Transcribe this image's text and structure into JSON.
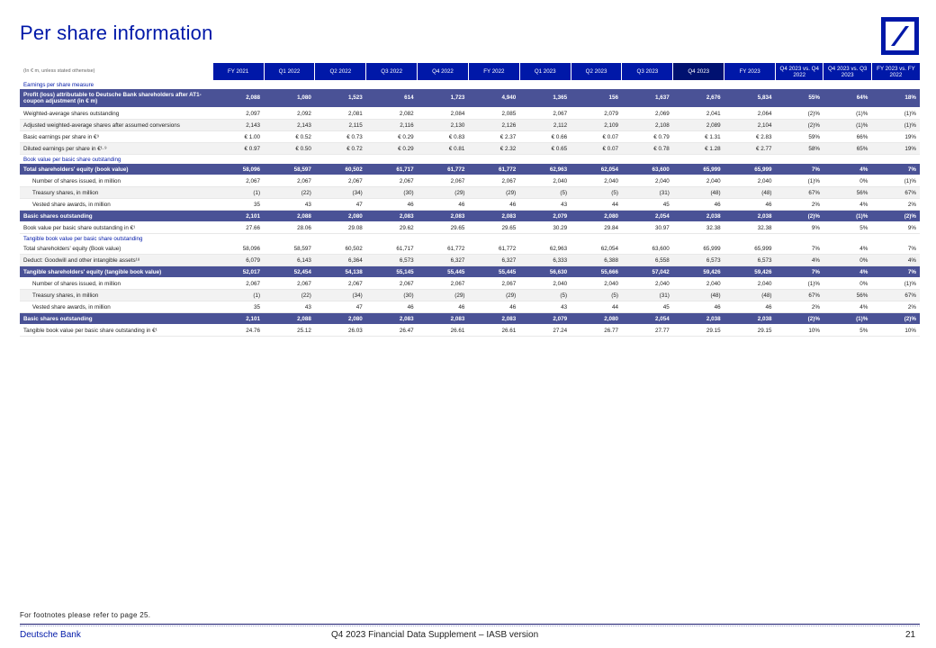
{
  "page_title": "Per share information",
  "header": {
    "label": "(In € m, unless stated otherwise)",
    "columns": [
      "FY 2021",
      "Q1 2022",
      "Q2 2022",
      "Q3 2022",
      "Q4 2022",
      "FY 2022",
      "Q1 2023",
      "Q2 2023",
      "Q3 2023",
      "Q4 2023",
      "FY 2023",
      "Q4 2023 vs. Q4 2022",
      "Q4 2023 vs. Q3 2023",
      "FY 2023 vs. FY 2022"
    ]
  },
  "rows": [
    {
      "kind": "section",
      "label": "Earnings per share measure"
    },
    {
      "kind": "total tall",
      "label": "Profit (loss) attributable to Deutsche Bank shareholders after AT1-coupon adjustment (in € m)",
      "values": [
        "2,088",
        "1,080",
        "1,523",
        "614",
        "1,723",
        "4,940",
        "1,365",
        "156",
        "1,637",
        "2,676",
        "5,834",
        "55%",
        "64%",
        "18%"
      ]
    },
    {
      "kind": "row",
      "label": "Weighted-average shares outstanding",
      "values": [
        "2,097",
        "2,092",
        "2,081",
        "2,082",
        "2,084",
        "2,085",
        "2,067",
        "2,079",
        "2,069",
        "2,041",
        "2,064",
        "(2)%",
        "(1)%",
        "(1)%"
      ]
    },
    {
      "kind": "row alt",
      "label": "Adjusted weighted-average shares after assumed conversions",
      "values": [
        "2,143",
        "2,143",
        "2,115",
        "2,116",
        "2,130",
        "2,126",
        "2,112",
        "2,109",
        "2,108",
        "2,089",
        "2,104",
        "(2)%",
        "(1)%",
        "(1)%"
      ]
    },
    {
      "kind": "row",
      "label": "Basic earnings per share in €⁹",
      "values": [
        "€ 1.00",
        "€ 0.52",
        "€ 0.73",
        "€ 0.29",
        "€ 0.83",
        "€ 2.37",
        "€ 0.66",
        "€ 0.07",
        "€ 0.79",
        "€ 1.31",
        "€ 2.83",
        "59%",
        "66%",
        "19%"
      ]
    },
    {
      "kind": "row alt",
      "label": "Diluted earnings per share in €¹·⁹",
      "values": [
        "€ 0.97",
        "€ 0.50",
        "€ 0.72",
        "€ 0.29",
        "€ 0.81",
        "€ 2.32",
        "€ 0.65",
        "€ 0.07",
        "€ 0.78",
        "€ 1.28",
        "€ 2.77",
        "58%",
        "65%",
        "19%"
      ]
    },
    {
      "kind": "section",
      "label": "Book value per basic share outstanding"
    },
    {
      "kind": "total",
      "label": "Total shareholders' equity (book value)",
      "values": [
        "58,096",
        "58,597",
        "60,502",
        "61,717",
        "61,772",
        "61,772",
        "62,963",
        "62,054",
        "63,600",
        "65,999",
        "65,999",
        "7%",
        "4%",
        "7%"
      ]
    },
    {
      "kind": "row sub",
      "label": "Number of shares issued, in million",
      "values": [
        "2,067",
        "2,067",
        "2,067",
        "2,067",
        "2,067",
        "2,067",
        "2,040",
        "2,040",
        "2,040",
        "2,040",
        "2,040",
        "(1)%",
        "0%",
        "(1)%"
      ]
    },
    {
      "kind": "row alt sub",
      "label": "Treasury shares, in million",
      "values": [
        "(1)",
        "(22)",
        "(34)",
        "(30)",
        "(29)",
        "(29)",
        "(5)",
        "(5)",
        "(31)",
        "(48)",
        "(48)",
        "67%",
        "56%",
        "67%"
      ]
    },
    {
      "kind": "row sub",
      "label": "Vested share awards, in million",
      "values": [
        "35",
        "43",
        "47",
        "46",
        "46",
        "46",
        "43",
        "44",
        "45",
        "46",
        "46",
        "2%",
        "4%",
        "2%"
      ]
    },
    {
      "kind": "total",
      "label": "Basic shares outstanding",
      "values": [
        "2,101",
        "2,088",
        "2,080",
        "2,083",
        "2,083",
        "2,083",
        "2,079",
        "2,080",
        "2,054",
        "2,038",
        "2,038",
        "(2)%",
        "(1)%",
        "(2)%"
      ]
    },
    {
      "kind": "row",
      "label": "Book value per basic share outstanding in €¹",
      "values": [
        "27.66",
        "28.06",
        "29.08",
        "29.62",
        "29.65",
        "29.65",
        "30.29",
        "29.84",
        "30.97",
        "32.38",
        "32.38",
        "9%",
        "5%",
        "9%"
      ]
    },
    {
      "kind": "section",
      "label": "Tangible book value per basic share outstanding"
    },
    {
      "kind": "row",
      "label": "Total shareholders' equity (Book value)",
      "values": [
        "58,096",
        "58,597",
        "60,502",
        "61,717",
        "61,772",
        "61,772",
        "62,963",
        "62,054",
        "63,600",
        "65,999",
        "65,999",
        "7%",
        "4%",
        "7%"
      ]
    },
    {
      "kind": "row alt",
      "label": "Deduct: Goodwill and other intangible assets¹⁸",
      "values": [
        "6,079",
        "6,143",
        "6,364",
        "6,573",
        "6,327",
        "6,327",
        "6,333",
        "6,388",
        "6,558",
        "6,573",
        "6,573",
        "4%",
        "0%",
        "4%"
      ]
    },
    {
      "kind": "total",
      "label": "Tangible shareholders' equity (tangible book value)",
      "values": [
        "52,017",
        "52,454",
        "54,138",
        "55,145",
        "55,445",
        "55,445",
        "56,630",
        "55,666",
        "57,042",
        "59,426",
        "59,426",
        "7%",
        "4%",
        "7%"
      ]
    },
    {
      "kind": "row sub",
      "label": "Number of shares issued, in million",
      "values": [
        "2,067",
        "2,067",
        "2,067",
        "2,067",
        "2,067",
        "2,067",
        "2,040",
        "2,040",
        "2,040",
        "2,040",
        "2,040",
        "(1)%",
        "0%",
        "(1)%"
      ]
    },
    {
      "kind": "row alt sub",
      "label": "Treasury shares, in million",
      "values": [
        "(1)",
        "(22)",
        "(34)",
        "(30)",
        "(29)",
        "(29)",
        "(5)",
        "(5)",
        "(31)",
        "(48)",
        "(48)",
        "67%",
        "56%",
        "67%"
      ]
    },
    {
      "kind": "row sub",
      "label": "Vested share awards, in million",
      "values": [
        "35",
        "43",
        "47",
        "46",
        "46",
        "46",
        "43",
        "44",
        "45",
        "46",
        "46",
        "2%",
        "4%",
        "2%"
      ]
    },
    {
      "kind": "total",
      "label": "Basic shares outstanding",
      "values": [
        "2,101",
        "2,088",
        "2,080",
        "2,083",
        "2,083",
        "2,083",
        "2,079",
        "2,080",
        "2,054",
        "2,038",
        "2,038",
        "(2)%",
        "(1)%",
        "(2)%"
      ]
    },
    {
      "kind": "row",
      "label": "Tangible book value per basic share outstanding in €¹",
      "values": [
        "24.76",
        "25.12",
        "26.03",
        "26.47",
        "26.61",
        "26.61",
        "27.24",
        "26.77",
        "27.77",
        "29.15",
        "29.15",
        "10%",
        "5%",
        "10%"
      ]
    }
  ],
  "footnote": "For footnotes please refer to page 25.",
  "footer": {
    "brand": "Deutsche Bank",
    "doc_title": "Q4 2023 Financial Data Supplement – IASB version",
    "page_number": "21"
  },
  "colors": {
    "brand_blue": "#0018a8",
    "total_row": "#4a5296",
    "highlight_col": "#001170"
  }
}
